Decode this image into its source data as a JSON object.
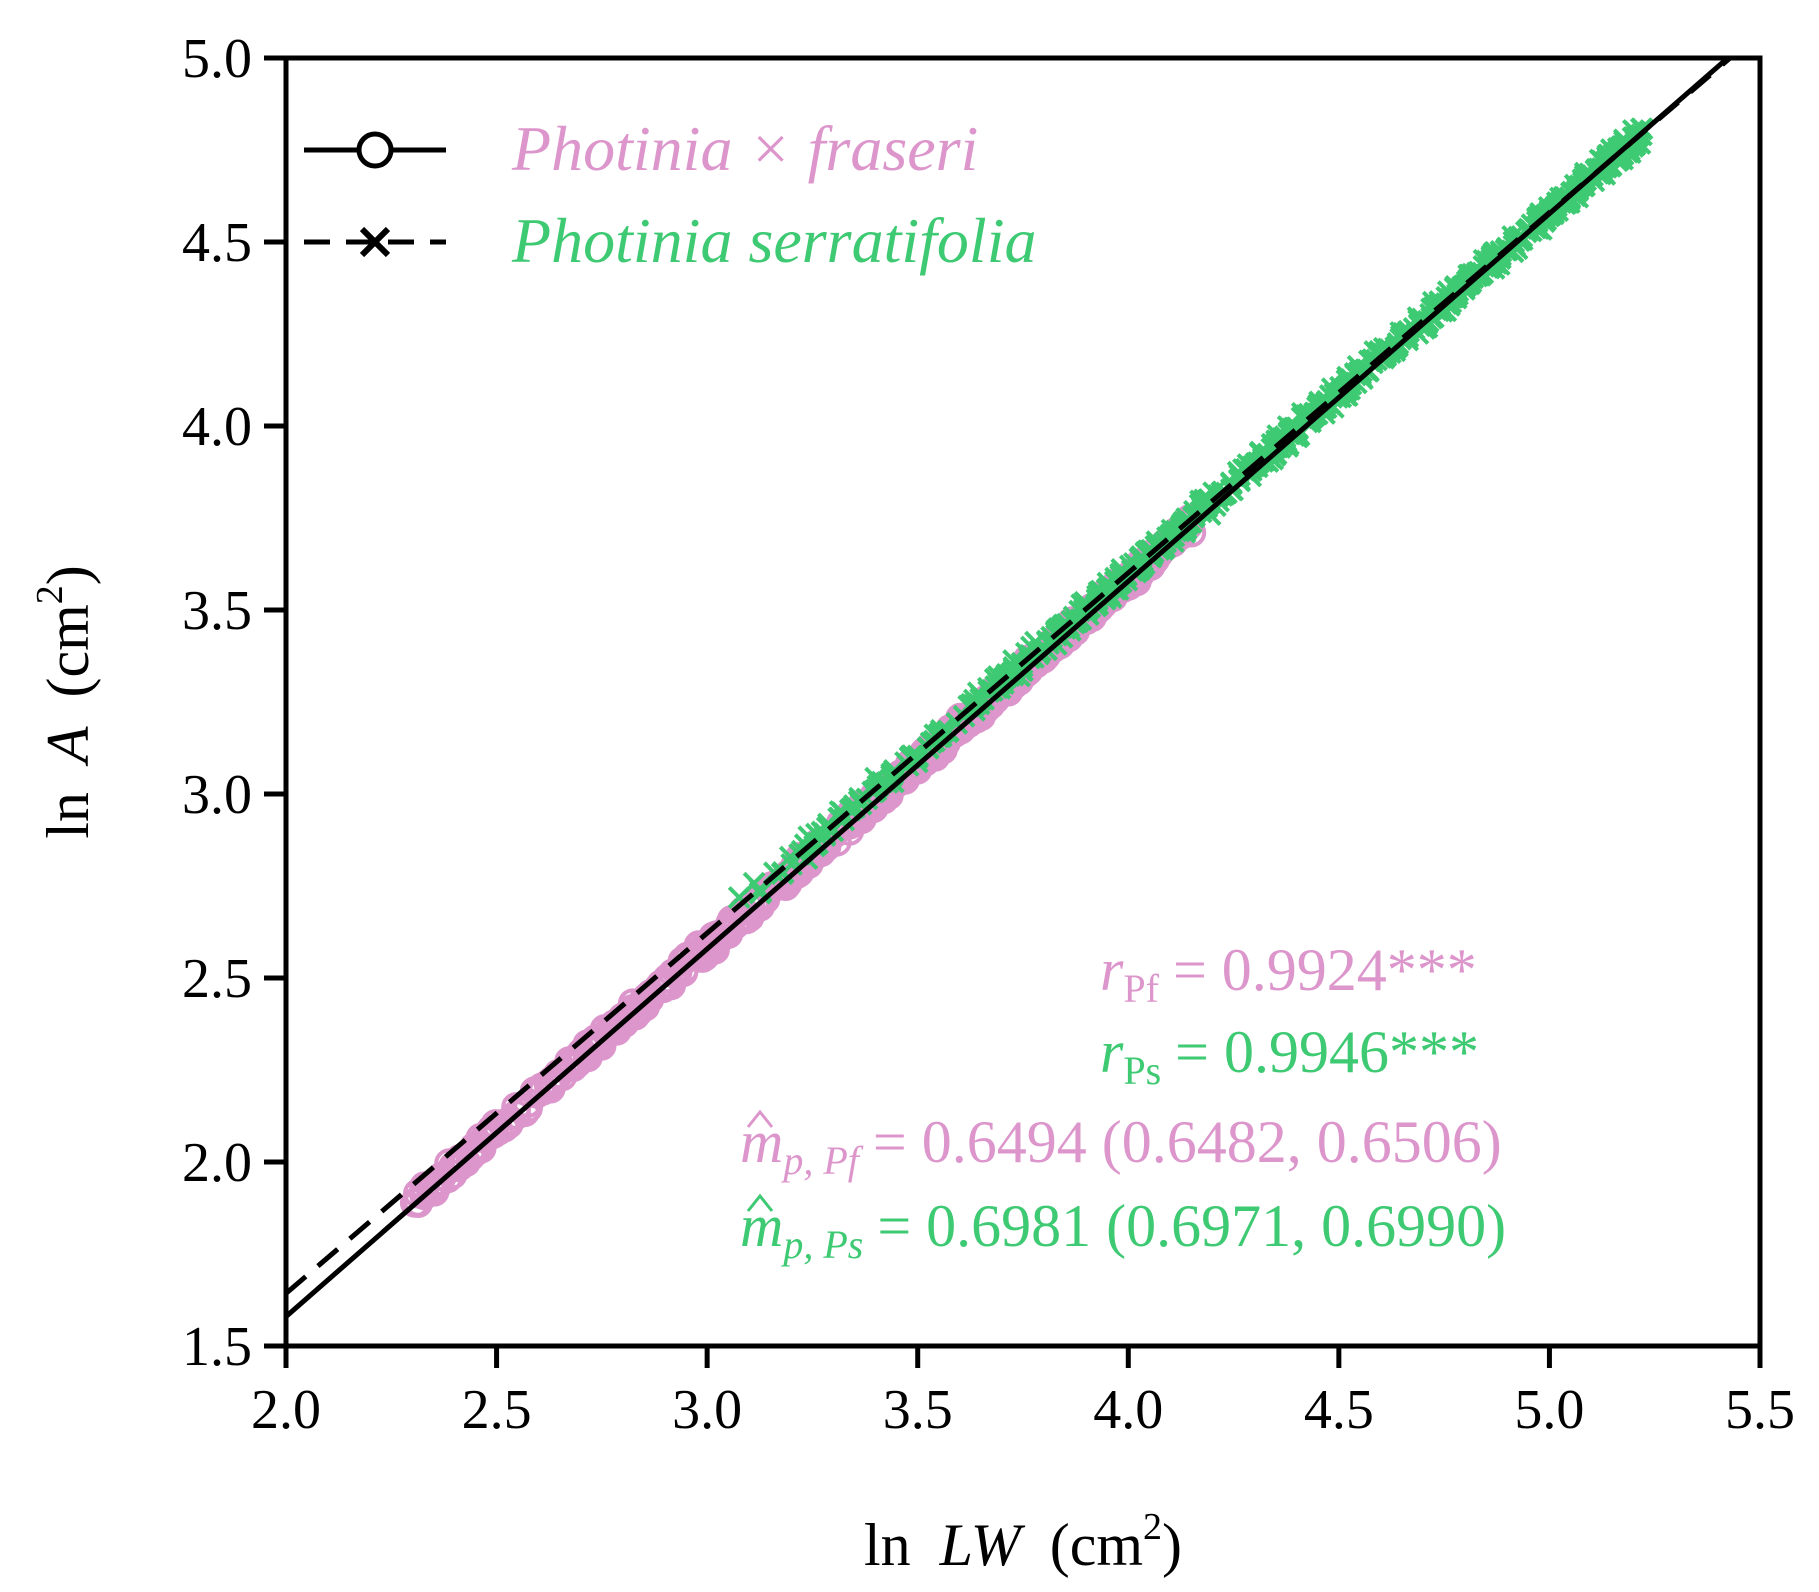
{
  "chart_data": {
    "type": "scatter",
    "title": "",
    "xlabel": {
      "prefix": "ln",
      "var": "LW",
      "unit_open": "(cm",
      "unit_sup": "2",
      "unit_close": ")"
    },
    "ylabel": {
      "prefix": "ln",
      "var": "A",
      "unit_open": "(cm",
      "unit_sup": "2",
      "unit_close": ")"
    },
    "xlim": [
      2.0,
      5.5
    ],
    "ylim": [
      1.5,
      5.0
    ],
    "xticks": [
      "2.0",
      "2.5",
      "3.0",
      "3.5",
      "4.0",
      "4.5",
      "5.0",
      "5.5"
    ],
    "yticks": [
      "1.5",
      "2.0",
      "2.5",
      "3.0",
      "3.5",
      "4.0",
      "4.5",
      "5.0"
    ],
    "grid": false,
    "legend_position": "top-left",
    "series": [
      {
        "name": "Photinia × fraseri",
        "short": "Pf",
        "marker": "circle",
        "line_style": "solid",
        "color": "#dc96cc",
        "fit": {
          "slope": 0.999,
          "intercept": -0.418
        },
        "x_range": [
          2.3,
          4.15
        ],
        "r_label": "r",
        "r_sub": "Pf",
        "r_value": "= 0.9924***",
        "m_label": "m",
        "m_sub": "p, Pf",
        "m_value": "= 0.6494 (0.6482, 0.6506)"
      },
      {
        "name": "Photinia serratifolia",
        "short": "Ps",
        "marker": "cross",
        "line_style": "dashed",
        "color": "#3ec973",
        "fit": {
          "slope": 0.979,
          "intercept": -0.315
        },
        "x_range": [
          3.05,
          5.22
        ],
        "r_label": "r",
        "r_sub": "Ps",
        "r_value": "= 0.9946***",
        "m_label": "m",
        "m_sub": "p, Ps",
        "m_value": "= 0.6981 (0.6971, 0.6990)"
      }
    ]
  },
  "colors": {
    "axis": "#000000",
    "fraseri": "#dc96cc",
    "serratifolia": "#3ec973"
  }
}
